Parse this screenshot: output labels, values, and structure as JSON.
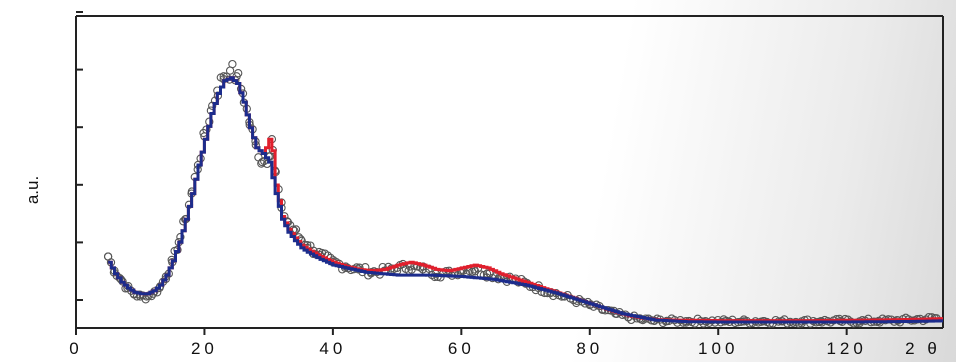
{
  "chart_data": {
    "type": "scatter",
    "title": "",
    "xlabel": "2 θ",
    "ylabel": "a.u.",
    "xlim": [
      0,
      135
    ],
    "ylim": [
      0,
      100
    ],
    "x_ticks": [
      0,
      20,
      40,
      60,
      80,
      100,
      120
    ],
    "x_tick_labels": [
      "0",
      "20",
      "40",
      "60",
      "80",
      "100",
      "120"
    ],
    "y_ticks_count": 6,
    "grid": false,
    "legend": "none",
    "colors": {
      "observed": "#555555",
      "fit_red": "#e01f2d",
      "fit_blue": "#1c2c8c"
    },
    "series": [
      {
        "role": "observed",
        "marker": "open-circle",
        "x": [
          5,
          6,
          7,
          8,
          9,
          10,
          11,
          12,
          13,
          14,
          15,
          16,
          17,
          18,
          19,
          20,
          21,
          22,
          23,
          24,
          25,
          26,
          27,
          28,
          29,
          30,
          30.5,
          31,
          32,
          33,
          34,
          35,
          36,
          37,
          38,
          40,
          42,
          44,
          46,
          48,
          50,
          52,
          54,
          56,
          58,
          60,
          62,
          64,
          66,
          68,
          70,
          72,
          74,
          76,
          78,
          80,
          82,
          84,
          86,
          88,
          90,
          92,
          95,
          98,
          101,
          104,
          107,
          110,
          113,
          116,
          119,
          122,
          125,
          128,
          131,
          134
        ],
        "y": [
          25,
          20,
          17,
          14,
          12,
          11,
          11,
          12,
          14,
          18,
          23,
          30,
          38,
          47,
          57,
          67,
          76,
          83,
          88,
          90,
          88,
          82,
          72,
          64,
          58,
          60,
          66,
          55,
          42,
          37,
          34,
          31,
          29,
          27,
          25.5,
          23,
          21.5,
          20.5,
          19.5,
          20,
          21,
          21.5,
          20.5,
          19,
          19,
          20,
          20.5,
          19,
          18,
          17,
          15.5,
          14,
          12.5,
          11,
          9.5,
          8,
          6.5,
          5,
          3.8,
          3,
          2.6,
          2.5,
          2.4,
          2.4,
          2.3,
          2.3,
          2.4,
          2.3,
          2.3,
          2.4,
          2.4,
          2.3,
          2.5,
          2.6,
          3,
          3.4
        ]
      },
      {
        "role": "fit-red",
        "x": [
          5,
          6,
          7,
          8,
          9,
          10,
          11,
          12,
          13,
          14,
          15,
          16,
          17,
          18,
          19,
          20,
          21,
          22,
          23,
          24,
          25,
          26,
          27,
          28,
          29,
          29.5,
          30,
          30.5,
          31,
          32,
          33,
          34,
          35,
          36,
          38,
          40,
          42,
          44,
          46,
          48,
          50,
          52,
          54,
          56,
          58,
          60,
          62,
          64,
          66,
          68,
          70,
          72,
          74,
          76,
          78,
          80,
          82,
          84,
          86,
          88,
          90,
          92,
          95,
          100,
          105,
          110,
          115,
          120,
          125,
          130,
          135
        ],
        "y": [
          23,
          19,
          16,
          14,
          12.5,
          12,
          12,
          13,
          15,
          18.5,
          23.5,
          30,
          38,
          47,
          57,
          66,
          75,
          82,
          86.5,
          87.5,
          85.5,
          79,
          70,
          63,
          61,
          63,
          66,
          62,
          50,
          39,
          34.5,
          31.5,
          29,
          27.5,
          25,
          23,
          21.5,
          20.5,
          20,
          20.5,
          22,
          23,
          22,
          20.5,
          20,
          21,
          22,
          21,
          19,
          17.5,
          16,
          14.5,
          13,
          11.5,
          10,
          8.5,
          7,
          5.5,
          4.3,
          3.5,
          3,
          2.8,
          2.7,
          2.6,
          2.6,
          2.6,
          2.6,
          2.7,
          2.8,
          3,
          3.3
        ]
      },
      {
        "role": "fit-blue",
        "x": [
          5,
          6,
          7,
          8,
          9,
          10,
          11,
          12,
          13,
          14,
          15,
          16,
          17,
          18,
          19,
          20,
          21,
          22,
          23,
          24,
          25,
          26,
          27,
          28,
          29,
          30,
          31,
          32,
          33,
          34,
          35,
          36,
          38,
          40,
          45,
          50,
          55,
          60,
          65,
          70,
          75,
          80,
          85,
          90,
          95,
          100,
          105,
          110,
          115,
          120,
          125,
          130,
          135
        ],
        "y": [
          23,
          19,
          16,
          14,
          12.5,
          12,
          12,
          13,
          15,
          18.5,
          23.5,
          30,
          38,
          47,
          57,
          66,
          75,
          82,
          86.5,
          87.5,
          85.5,
          79,
          70,
          63,
          61,
          58,
          47,
          38,
          33.5,
          30.5,
          28,
          26.5,
          24,
          22,
          19.5,
          18.5,
          18.5,
          18,
          17,
          15,
          12,
          8.5,
          5,
          2.8,
          2.2,
          2.1,
          2.1,
          2.1,
          2.1,
          2.1,
          2.2,
          2.3,
          2.5
        ]
      }
    ]
  }
}
